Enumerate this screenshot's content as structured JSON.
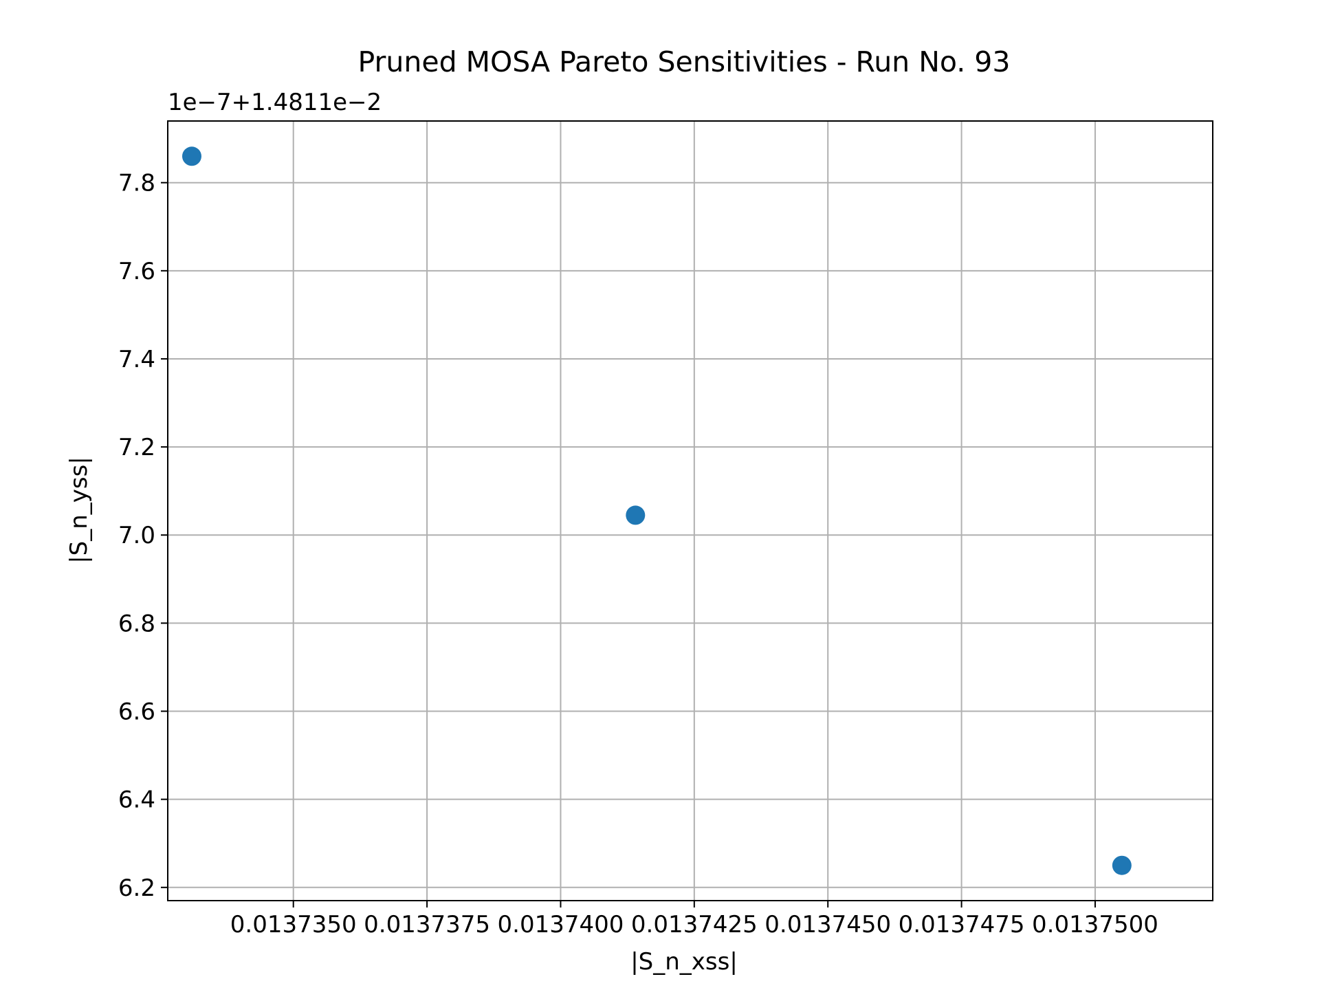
{
  "chart_data": {
    "type": "scatter",
    "title": "Pruned MOSA Pareto Sensitivities - Run No. 93",
    "xlabel": "|S_n_xss|",
    "ylabel": "|S_n_yss|",
    "y_offset_text": "1e−7+1.4811e−2",
    "xlim": [
      0.01373265,
      0.0137522
    ],
    "ylim": [
      6.17,
      7.94
    ],
    "x_ticks": [
      0.013735,
      0.0137375,
      0.01374,
      0.0137425,
      0.013745,
      0.0137475,
      0.01375
    ],
    "x_tick_labels": [
      "0.0137350",
      "0.0137375",
      "0.0137400",
      "0.0137425",
      "0.0137450",
      "0.0137475",
      "0.0137500"
    ],
    "y_ticks": [
      6.2,
      6.4,
      6.6,
      6.8,
      7.0,
      7.2,
      7.4,
      7.6,
      7.8
    ],
    "y_tick_labels": [
      "6.2",
      "6.4",
      "6.6",
      "6.8",
      "7.0",
      "7.2",
      "7.4",
      "7.6",
      "7.8"
    ],
    "points": [
      {
        "x": 0.0137331,
        "y": 7.86
      },
      {
        "x": 0.0137414,
        "y": 7.045
      },
      {
        "x": 0.0137505,
        "y": 6.25
      }
    ],
    "grid": true,
    "marker_color": "#1f77b4"
  }
}
